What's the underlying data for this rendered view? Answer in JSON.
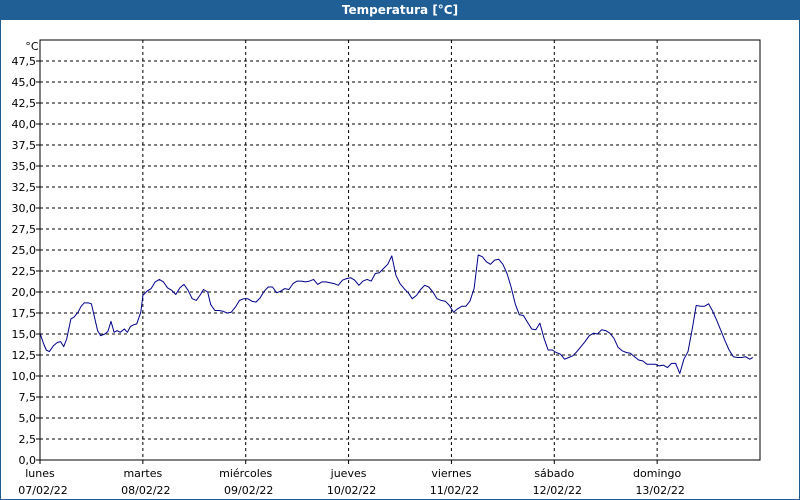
{
  "window": {
    "title": "Temperatura [°C]"
  },
  "chart_data": {
    "type": "line",
    "unit_label": "°C",
    "ylim": [
      0,
      50
    ],
    "y_ticks": [
      "0,0",
      "2,5",
      "5,0",
      "7,5",
      "10,0",
      "12,5",
      "15,0",
      "17,5",
      "20,0",
      "22,5",
      "25,0",
      "27,5",
      "30,0",
      "32,5",
      "35,0",
      "37,5",
      "40,0",
      "42,5",
      "45,0",
      "47,5"
    ],
    "x_range_days": [
      0,
      7
    ],
    "days": [
      {
        "name": "lunes",
        "date": "07/02/22"
      },
      {
        "name": "martes",
        "date": "08/02/22"
      },
      {
        "name": "miércoles",
        "date": "09/02/22"
      },
      {
        "name": "jueves",
        "date": "10/02/22"
      },
      {
        "name": "viernes",
        "date": "11/02/22"
      },
      {
        "name": "sábado",
        "date": "12/02/22"
      },
      {
        "name": "domingo",
        "date": "13/02/22"
      }
    ],
    "grid": true,
    "series": [
      {
        "color": "#00008b",
        "values": [
          [
            0.0,
            15.1
          ],
          [
            0.03,
            14.0
          ],
          [
            0.06,
            13.1
          ],
          [
            0.09,
            12.9
          ],
          [
            0.13,
            13.6
          ],
          [
            0.17,
            14.0
          ],
          [
            0.2,
            14.1
          ],
          [
            0.23,
            13.5
          ],
          [
            0.26,
            14.4
          ],
          [
            0.3,
            16.8
          ],
          [
            0.33,
            17.0
          ],
          [
            0.37,
            17.6
          ],
          [
            0.4,
            18.3
          ],
          [
            0.43,
            18.7
          ],
          [
            0.47,
            18.7
          ],
          [
            0.5,
            18.6
          ],
          [
            0.53,
            17.0
          ],
          [
            0.56,
            15.4
          ],
          [
            0.59,
            14.8
          ],
          [
            0.63,
            15.0
          ],
          [
            0.66,
            15.3
          ],
          [
            0.69,
            16.5
          ],
          [
            0.72,
            15.2
          ],
          [
            0.75,
            15.4
          ],
          [
            0.78,
            15.2
          ],
          [
            0.82,
            15.6
          ],
          [
            0.85,
            15.2
          ],
          [
            0.88,
            15.9
          ],
          [
            0.91,
            16.1
          ],
          [
            0.94,
            16.2
          ],
          [
            0.98,
            17.6
          ],
          [
            1.0,
            19.6
          ],
          [
            1.04,
            20.1
          ],
          [
            1.08,
            20.4
          ],
          [
            1.12,
            21.2
          ],
          [
            1.16,
            21.5
          ],
          [
            1.2,
            21.2
          ],
          [
            1.24,
            20.5
          ],
          [
            1.28,
            20.2
          ],
          [
            1.32,
            19.7
          ],
          [
            1.36,
            20.5
          ],
          [
            1.4,
            20.9
          ],
          [
            1.44,
            20.2
          ],
          [
            1.48,
            19.2
          ],
          [
            1.52,
            19.0
          ],
          [
            1.56,
            19.7
          ],
          [
            1.59,
            20.3
          ],
          [
            1.63,
            20.0
          ],
          [
            1.66,
            18.5
          ],
          [
            1.7,
            17.8
          ],
          [
            1.74,
            17.8
          ],
          [
            1.78,
            17.7
          ],
          [
            1.82,
            17.5
          ],
          [
            1.86,
            17.6
          ],
          [
            1.9,
            18.2
          ],
          [
            1.94,
            19.0
          ],
          [
            1.98,
            19.2
          ],
          [
            2.02,
            19.2
          ],
          [
            2.06,
            18.9
          ],
          [
            2.1,
            18.8
          ],
          [
            2.14,
            19.3
          ],
          [
            2.18,
            20.1
          ],
          [
            2.22,
            20.6
          ],
          [
            2.26,
            20.6
          ],
          [
            2.3,
            19.9
          ],
          [
            2.34,
            20.1
          ],
          [
            2.38,
            20.4
          ],
          [
            2.42,
            20.3
          ],
          [
            2.46,
            21.0
          ],
          [
            2.5,
            21.3
          ],
          [
            2.54,
            21.3
          ],
          [
            2.58,
            21.2
          ],
          [
            2.62,
            21.3
          ],
          [
            2.66,
            21.5
          ],
          [
            2.7,
            20.9
          ],
          [
            2.74,
            21.2
          ],
          [
            2.78,
            21.2
          ],
          [
            2.82,
            21.1
          ],
          [
            2.86,
            21.0
          ],
          [
            2.9,
            20.8
          ],
          [
            2.94,
            21.4
          ],
          [
            2.98,
            21.6
          ],
          [
            3.02,
            21.7
          ],
          [
            3.06,
            21.4
          ],
          [
            3.1,
            20.8
          ],
          [
            3.14,
            21.3
          ],
          [
            3.18,
            21.5
          ],
          [
            3.22,
            21.3
          ],
          [
            3.26,
            22.2
          ],
          [
            3.3,
            22.3
          ],
          [
            3.34,
            22.8
          ],
          [
            3.38,
            23.3
          ],
          [
            3.42,
            24.3
          ],
          [
            3.46,
            22.0
          ],
          [
            3.5,
            21.0
          ],
          [
            3.54,
            20.4
          ],
          [
            3.58,
            19.9
          ],
          [
            3.62,
            19.2
          ],
          [
            3.66,
            19.6
          ],
          [
            3.7,
            20.3
          ],
          [
            3.74,
            20.8
          ],
          [
            3.78,
            20.6
          ],
          [
            3.82,
            20.0
          ],
          [
            3.86,
            19.2
          ],
          [
            3.9,
            19.0
          ],
          [
            3.94,
            18.9
          ],
          [
            3.98,
            18.4
          ],
          [
            4.02,
            17.6
          ],
          [
            4.06,
            18.0
          ],
          [
            4.1,
            18.3
          ],
          [
            4.14,
            18.3
          ],
          [
            4.18,
            18.9
          ],
          [
            4.22,
            20.4
          ],
          [
            4.26,
            24.4
          ],
          [
            4.3,
            24.2
          ],
          [
            4.34,
            23.6
          ],
          [
            4.38,
            23.3
          ],
          [
            4.42,
            23.8
          ],
          [
            4.46,
            23.9
          ],
          [
            4.5,
            23.3
          ],
          [
            4.54,
            22.2
          ],
          [
            4.58,
            20.6
          ],
          [
            4.62,
            18.6
          ],
          [
            4.66,
            17.3
          ],
          [
            4.7,
            17.2
          ],
          [
            4.74,
            16.4
          ],
          [
            4.78,
            15.6
          ],
          [
            4.82,
            15.5
          ],
          [
            4.86,
            16.3
          ],
          [
            4.9,
            14.5
          ],
          [
            4.94,
            13.1
          ],
          [
            4.98,
            13.1
          ],
          [
            5.02,
            12.8
          ],
          [
            5.06,
            12.6
          ],
          [
            5.1,
            12.0
          ],
          [
            5.14,
            12.2
          ],
          [
            5.18,
            12.4
          ],
          [
            5.22,
            12.9
          ],
          [
            5.26,
            13.5
          ],
          [
            5.3,
            14.1
          ],
          [
            5.34,
            14.8
          ],
          [
            5.38,
            15.1
          ],
          [
            5.42,
            15.0
          ],
          [
            5.46,
            15.5
          ],
          [
            5.5,
            15.4
          ],
          [
            5.54,
            15.1
          ],
          [
            5.58,
            14.5
          ],
          [
            5.62,
            13.4
          ],
          [
            5.66,
            13.0
          ],
          [
            5.7,
            12.8
          ],
          [
            5.74,
            12.7
          ],
          [
            5.78,
            12.3
          ],
          [
            5.82,
            11.9
          ],
          [
            5.86,
            11.8
          ],
          [
            5.9,
            11.4
          ],
          [
            5.94,
            11.4
          ],
          [
            5.98,
            11.4
          ],
          [
            6.02,
            11.2
          ],
          [
            6.06,
            11.3
          ],
          [
            6.1,
            11.0
          ],
          [
            6.14,
            11.5
          ],
          [
            6.18,
            11.5
          ],
          [
            6.2,
            10.9
          ],
          [
            6.22,
            10.3
          ],
          [
            6.26,
            12.0
          ],
          [
            6.3,
            12.9
          ],
          [
            6.34,
            15.5
          ],
          [
            6.38,
            18.4
          ],
          [
            6.42,
            18.3
          ],
          [
            6.46,
            18.3
          ],
          [
            6.5,
            18.6
          ],
          [
            6.54,
            17.7
          ],
          [
            6.58,
            16.6
          ],
          [
            6.62,
            15.4
          ],
          [
            6.66,
            14.2
          ],
          [
            6.7,
            13.1
          ],
          [
            6.74,
            12.3
          ],
          [
            6.78,
            12.2
          ],
          [
            6.82,
            12.2
          ],
          [
            6.86,
            12.3
          ],
          [
            6.9,
            12.0
          ],
          [
            6.93,
            12.2
          ]
        ]
      }
    ]
  }
}
